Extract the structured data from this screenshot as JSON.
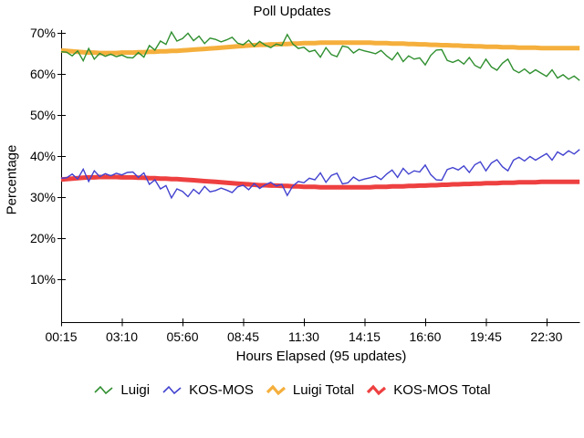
{
  "title": "Poll Updates",
  "colors": {
    "luigi": "#2f8f2f",
    "kosmos": "#4242d0",
    "luigi_total": "#f5af3c",
    "kosmos_total": "#ee4040",
    "axis": "#000000",
    "background": "#ffffff"
  },
  "chart_data": {
    "type": "line",
    "title": "Poll Updates",
    "xlabel": "Hours Elapsed (95 updates)",
    "ylabel": "Percentage",
    "grid": false,
    "legend_position": "bottom",
    "n_points": 95,
    "ylim": [
      0,
      72
    ],
    "y_ticks": [
      10,
      20,
      30,
      40,
      50,
      60,
      70
    ],
    "y_tick_labels": [
      "10%",
      "20%",
      "30%",
      "40%",
      "50%",
      "60%",
      "70%"
    ],
    "x_tick_indices": [
      0,
      11,
      22,
      33,
      44,
      55,
      66,
      77,
      88
    ],
    "x_tick_labels": [
      "00:15",
      "03:10",
      "05:60",
      "08:45",
      "11:30",
      "14:15",
      "16:60",
      "19:45",
      "22:30"
    ],
    "draw_order": [
      2,
      3,
      0,
      1
    ],
    "series": [
      {
        "name": "Luigi",
        "color": "#2f8f2f",
        "stroke_width": 1.4,
        "legend_stroke": 1.6,
        "values": [
          65.4,
          65.3,
          64.4,
          65.6,
          63.2,
          66.2,
          63.6,
          65.0,
          64.3,
          64.8,
          64.2,
          64.6,
          64.0,
          63.9,
          65.2,
          64.1,
          66.9,
          65.8,
          68.0,
          67.2,
          70.2,
          68.0,
          68.6,
          69.9,
          68.1,
          69.2,
          67.4,
          68.7,
          68.4,
          67.8,
          68.3,
          68.9,
          67.5,
          67.1,
          68.2,
          66.7,
          67.9,
          67.0,
          66.4,
          67.3,
          66.9,
          69.6,
          67.3,
          66.2,
          66.5,
          65.4,
          65.8,
          64.1,
          66.4,
          64.7,
          64.2,
          66.8,
          66.5,
          65.1,
          66.0,
          65.6,
          65.3,
          64.9,
          65.7,
          64.4,
          63.4,
          65.2,
          63.0,
          64.4,
          63.6,
          63.9,
          62.2,
          64.5,
          65.8,
          65.9,
          63.3,
          62.8,
          63.4,
          62.4,
          64.0,
          62.1,
          61.4,
          63.6,
          61.7,
          60.9,
          62.6,
          63.6,
          61.0,
          60.3,
          61.2,
          60.1,
          61.0,
          60.2,
          59.4,
          61.0,
          59.0,
          59.8,
          58.7,
          59.5,
          58.4
        ]
      },
      {
        "name": "KOS-MOS",
        "color": "#4242d0",
        "stroke_width": 1.4,
        "legend_stroke": 1.6,
        "values": [
          34.6,
          34.7,
          35.6,
          34.4,
          36.8,
          33.8,
          36.4,
          35.0,
          35.7,
          35.2,
          35.8,
          35.4,
          36.0,
          36.1,
          34.8,
          35.9,
          33.1,
          34.2,
          32.0,
          32.8,
          29.8,
          32.0,
          31.4,
          30.1,
          31.9,
          30.8,
          32.6,
          31.3,
          31.6,
          32.2,
          31.7,
          31.1,
          32.5,
          32.9,
          31.8,
          33.3,
          32.1,
          33.0,
          33.6,
          32.7,
          33.1,
          30.4,
          32.7,
          33.8,
          33.5,
          34.6,
          34.2,
          35.9,
          33.6,
          35.3,
          35.8,
          33.2,
          33.5,
          34.9,
          34.0,
          34.4,
          34.7,
          35.1,
          34.3,
          35.6,
          36.6,
          34.8,
          37.0,
          35.6,
          36.4,
          36.1,
          37.8,
          35.5,
          34.2,
          34.1,
          36.7,
          37.2,
          36.6,
          37.6,
          36.0,
          37.9,
          38.6,
          36.4,
          38.3,
          39.1,
          37.4,
          36.4,
          39.0,
          39.7,
          38.8,
          39.9,
          39.0,
          39.8,
          40.6,
          39.0,
          41.0,
          40.2,
          41.3,
          40.5,
          41.6
        ]
      },
      {
        "name": "Luigi Total",
        "color": "#f5af3c",
        "stroke_width": 5,
        "legend_stroke": 3.2,
        "values": [
          65.7,
          65.6,
          65.5,
          65.4,
          65.3,
          65.2,
          65.2,
          65.1,
          65.1,
          65.1,
          65.1,
          65.2,
          65.2,
          65.2,
          65.3,
          65.3,
          65.4,
          65.4,
          65.5,
          65.5,
          65.6,
          65.6,
          65.7,
          65.8,
          65.9,
          66.0,
          66.1,
          66.2,
          66.3,
          66.4,
          66.5,
          66.6,
          66.7,
          66.8,
          66.9,
          67.0,
          67.1,
          67.1,
          67.2,
          67.2,
          67.3,
          67.3,
          67.4,
          67.4,
          67.5,
          67.5,
          67.5,
          67.6,
          67.6,
          67.6,
          67.6,
          67.6,
          67.6,
          67.6,
          67.6,
          67.6,
          67.6,
          67.5,
          67.5,
          67.5,
          67.4,
          67.4,
          67.4,
          67.3,
          67.3,
          67.2,
          67.2,
          67.1,
          67.1,
          67.0,
          67.0,
          66.9,
          66.9,
          66.8,
          66.8,
          66.7,
          66.7,
          66.6,
          66.6,
          66.6,
          66.5,
          66.5,
          66.5,
          66.4,
          66.4,
          66.4,
          66.4,
          66.3,
          66.3,
          66.3,
          66.3,
          66.3,
          66.3,
          66.3,
          66.3
        ]
      },
      {
        "name": "KOS-MOS Total",
        "color": "#ee4040",
        "stroke_width": 5,
        "legend_stroke": 3.2,
        "values": [
          34.3,
          34.4,
          34.5,
          34.6,
          34.7,
          34.8,
          34.8,
          34.9,
          34.9,
          34.9,
          34.9,
          34.8,
          34.8,
          34.8,
          34.7,
          34.7,
          34.6,
          34.6,
          34.5,
          34.5,
          34.4,
          34.4,
          34.3,
          34.2,
          34.1,
          34.0,
          33.9,
          33.8,
          33.7,
          33.6,
          33.5,
          33.4,
          33.3,
          33.2,
          33.1,
          33.0,
          32.9,
          32.9,
          32.8,
          32.8,
          32.7,
          32.7,
          32.6,
          32.6,
          32.5,
          32.5,
          32.5,
          32.4,
          32.4,
          32.4,
          32.4,
          32.4,
          32.4,
          32.4,
          32.4,
          32.4,
          32.4,
          32.5,
          32.5,
          32.5,
          32.6,
          32.6,
          32.6,
          32.7,
          32.7,
          32.8,
          32.8,
          32.9,
          32.9,
          33.0,
          33.0,
          33.1,
          33.1,
          33.2,
          33.2,
          33.3,
          33.3,
          33.4,
          33.4,
          33.4,
          33.5,
          33.5,
          33.5,
          33.6,
          33.6,
          33.6,
          33.6,
          33.7,
          33.7,
          33.7,
          33.7,
          33.7,
          33.7,
          33.7,
          33.7
        ]
      }
    ],
    "legend_labels": [
      "Luigi",
      "KOS-MOS",
      "Luigi Total",
      "KOS-MOS Total"
    ]
  }
}
